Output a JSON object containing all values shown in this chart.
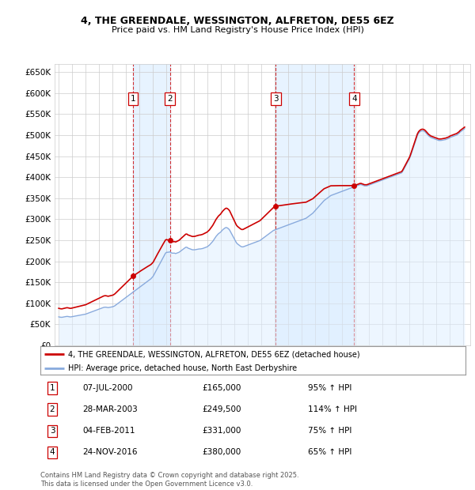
{
  "title_line1": "4, THE GREENDALE, WESSINGTON, ALFRETON, DE55 6EZ",
  "title_line2": "Price paid vs. HM Land Registry's House Price Index (HPI)",
  "background_color": "#ffffff",
  "grid_color": "#cccccc",
  "sale_color": "#cc0000",
  "hpi_color": "#88aadd",
  "hpi_fill_color": "#ddeeff",
  "vband_color": "#ddeeff",
  "ylim": [
    0,
    670000
  ],
  "yticks": [
    0,
    50000,
    100000,
    150000,
    200000,
    250000,
    300000,
    350000,
    400000,
    450000,
    500000,
    550000,
    600000,
    650000
  ],
  "ytick_labels": [
    "£0",
    "£50K",
    "£100K",
    "£150K",
    "£200K",
    "£250K",
    "£300K",
    "£350K",
    "£400K",
    "£450K",
    "£500K",
    "£550K",
    "£600K",
    "£650K"
  ],
  "xlim_start": 1994.7,
  "xlim_end": 2025.5,
  "xticks": [
    1995,
    1996,
    1997,
    1998,
    1999,
    2000,
    2001,
    2002,
    2003,
    2004,
    2005,
    2006,
    2007,
    2008,
    2009,
    2010,
    2011,
    2012,
    2013,
    2014,
    2015,
    2016,
    2017,
    2018,
    2019,
    2020,
    2021,
    2022,
    2023,
    2024,
    2025
  ],
  "legend_sale_label": "4, THE GREENDALE, WESSINGTON, ALFRETON, DE55 6EZ (detached house)",
  "legend_hpi_label": "HPI: Average price, detached house, North East Derbyshire",
  "sale_events": [
    {
      "label": "1",
      "date_year": 2000.52,
      "price": 165000,
      "pct": "95%",
      "date_str": "07-JUL-2000"
    },
    {
      "label": "2",
      "date_year": 2003.24,
      "price": 249500,
      "pct": "114%",
      "date_str": "28-MAR-2003"
    },
    {
      "label": "3",
      "date_year": 2011.09,
      "price": 331000,
      "pct": "75%",
      "date_str": "04-FEB-2011"
    },
    {
      "label": "4",
      "date_year": 2016.9,
      "price": 380000,
      "pct": "65%",
      "date_str": "24-NOV-2016"
    }
  ],
  "footnote": "Contains HM Land Registry data © Crown copyright and database right 2025.\nThis data is licensed under the Open Government Licence v3.0.",
  "hpi_data_x": [
    1995.0,
    1995.083,
    1995.167,
    1995.25,
    1995.333,
    1995.417,
    1995.5,
    1995.583,
    1995.667,
    1995.75,
    1995.833,
    1995.917,
    1996.0,
    1996.083,
    1996.167,
    1996.25,
    1996.333,
    1996.417,
    1996.5,
    1996.583,
    1996.667,
    1996.75,
    1996.833,
    1996.917,
    1997.0,
    1997.083,
    1997.167,
    1997.25,
    1997.333,
    1997.417,
    1997.5,
    1997.583,
    1997.667,
    1997.75,
    1997.833,
    1997.917,
    1998.0,
    1998.083,
    1998.167,
    1998.25,
    1998.333,
    1998.417,
    1998.5,
    1998.583,
    1998.667,
    1998.75,
    1998.833,
    1998.917,
    1999.0,
    1999.083,
    1999.167,
    1999.25,
    1999.333,
    1999.417,
    1999.5,
    1999.583,
    1999.667,
    1999.75,
    1999.833,
    1999.917,
    2000.0,
    2000.083,
    2000.167,
    2000.25,
    2000.333,
    2000.417,
    2000.5,
    2000.583,
    2000.667,
    2000.75,
    2000.833,
    2000.917,
    2001.0,
    2001.083,
    2001.167,
    2001.25,
    2001.333,
    2001.417,
    2001.5,
    2001.583,
    2001.667,
    2001.75,
    2001.833,
    2001.917,
    2002.0,
    2002.083,
    2002.167,
    2002.25,
    2002.333,
    2002.417,
    2002.5,
    2002.583,
    2002.667,
    2002.75,
    2002.833,
    2002.917,
    2003.0,
    2003.083,
    2003.167,
    2003.25,
    2003.333,
    2003.417,
    2003.5,
    2003.583,
    2003.667,
    2003.75,
    2003.833,
    2003.917,
    2004.0,
    2004.083,
    2004.167,
    2004.25,
    2004.333,
    2004.417,
    2004.5,
    2004.583,
    2004.667,
    2004.75,
    2004.833,
    2004.917,
    2005.0,
    2005.083,
    2005.167,
    2005.25,
    2005.333,
    2005.417,
    2005.5,
    2005.583,
    2005.667,
    2005.75,
    2005.833,
    2005.917,
    2006.0,
    2006.083,
    2006.167,
    2006.25,
    2006.333,
    2006.417,
    2006.5,
    2006.583,
    2006.667,
    2006.75,
    2006.833,
    2006.917,
    2007.0,
    2007.083,
    2007.167,
    2007.25,
    2007.333,
    2007.417,
    2007.5,
    2007.583,
    2007.667,
    2007.75,
    2007.833,
    2007.917,
    2008.0,
    2008.083,
    2008.167,
    2008.25,
    2008.333,
    2008.417,
    2008.5,
    2008.583,
    2008.667,
    2008.75,
    2008.833,
    2008.917,
    2009.0,
    2009.083,
    2009.167,
    2009.25,
    2009.333,
    2009.417,
    2009.5,
    2009.583,
    2009.667,
    2009.75,
    2009.833,
    2009.917,
    2010.0,
    2010.083,
    2010.167,
    2010.25,
    2010.333,
    2010.417,
    2010.5,
    2010.583,
    2010.667,
    2010.75,
    2010.833,
    2010.917,
    2011.0,
    2011.083,
    2011.167,
    2011.25,
    2011.333,
    2011.417,
    2011.5,
    2011.583,
    2011.667,
    2011.75,
    2011.833,
    2011.917,
    2012.0,
    2012.083,
    2012.167,
    2012.25,
    2012.333,
    2012.417,
    2012.5,
    2012.583,
    2012.667,
    2012.75,
    2012.833,
    2012.917,
    2013.0,
    2013.083,
    2013.167,
    2013.25,
    2013.333,
    2013.417,
    2013.5,
    2013.583,
    2013.667,
    2013.75,
    2013.833,
    2013.917,
    2014.0,
    2014.083,
    2014.167,
    2014.25,
    2014.333,
    2014.417,
    2014.5,
    2014.583,
    2014.667,
    2014.75,
    2014.833,
    2014.917,
    2015.0,
    2015.083,
    2015.167,
    2015.25,
    2015.333,
    2015.417,
    2015.5,
    2015.583,
    2015.667,
    2015.75,
    2015.833,
    2015.917,
    2016.0,
    2016.083,
    2016.167,
    2016.25,
    2016.333,
    2016.417,
    2016.5,
    2016.583,
    2016.667,
    2016.75,
    2016.833,
    2016.917,
    2017.0,
    2017.083,
    2017.167,
    2017.25,
    2017.333,
    2017.417,
    2017.5,
    2017.583,
    2017.667,
    2017.75,
    2017.833,
    2017.917,
    2018.0,
    2018.083,
    2018.167,
    2018.25,
    2018.333,
    2018.417,
    2018.5,
    2018.583,
    2018.667,
    2018.75,
    2018.833,
    2018.917,
    2019.0,
    2019.083,
    2019.167,
    2019.25,
    2019.333,
    2019.417,
    2019.5,
    2019.583,
    2019.667,
    2019.75,
    2019.833,
    2019.917,
    2020.0,
    2020.083,
    2020.167,
    2020.25,
    2020.333,
    2020.417,
    2020.5,
    2020.583,
    2020.667,
    2020.75,
    2020.833,
    2020.917,
    2021.0,
    2021.083,
    2021.167,
    2021.25,
    2021.333,
    2021.417,
    2021.5,
    2021.583,
    2021.667,
    2021.75,
    2021.833,
    2021.917,
    2022.0,
    2022.083,
    2022.167,
    2022.25,
    2022.333,
    2022.417,
    2022.5,
    2022.583,
    2022.667,
    2022.75,
    2022.833,
    2022.917,
    2023.0,
    2023.083,
    2023.167,
    2023.25,
    2023.333,
    2023.417,
    2023.5,
    2023.583,
    2023.667,
    2023.75,
    2023.833,
    2023.917,
    2024.0,
    2024.083,
    2024.167,
    2024.25,
    2024.333,
    2024.417,
    2024.5,
    2024.583,
    2024.667,
    2024.75,
    2024.833,
    2024.917,
    2025.0,
    2025.083
  ],
  "hpi_data_y": [
    68000,
    67500,
    67000,
    67000,
    67500,
    68000,
    68500,
    69000,
    69000,
    68500,
    68000,
    68000,
    68500,
    69000,
    69500,
    70000,
    70500,
    71000,
    71500,
    72000,
    72500,
    73000,
    73500,
    74000,
    74500,
    75500,
    76500,
    77500,
    78500,
    79500,
    80500,
    81500,
    82500,
    83500,
    84500,
    85500,
    86500,
    87500,
    88500,
    89500,
    90500,
    91000,
    91000,
    90500,
    90000,
    90500,
    91000,
    91500,
    92000,
    93000,
    94500,
    96500,
    98500,
    100500,
    102500,
    104500,
    106500,
    108500,
    110500,
    112500,
    114500,
    116500,
    118500,
    120500,
    122500,
    124500,
    126500,
    128500,
    130500,
    132500,
    134500,
    136500,
    138500,
    140500,
    142500,
    144500,
    146500,
    148500,
    150500,
    152500,
    154500,
    156500,
    158500,
    161500,
    164500,
    169500,
    174500,
    179500,
    184500,
    189500,
    194500,
    199500,
    204500,
    209500,
    214500,
    219500,
    221500,
    221500,
    222000,
    222500,
    220500,
    219500,
    219500,
    219500,
    218500,
    219500,
    220500,
    221500,
    223500,
    225500,
    227500,
    229500,
    231500,
    233500,
    233500,
    231500,
    230500,
    229500,
    228500,
    227500,
    227500,
    227500,
    228000,
    228500,
    229000,
    229500,
    229500,
    230000,
    230500,
    231500,
    232500,
    233500,
    234500,
    236500,
    238500,
    241500,
    244500,
    247500,
    251500,
    255500,
    259500,
    262500,
    265500,
    267500,
    269500,
    272500,
    275500,
    277500,
    279500,
    280500,
    279500,
    277500,
    274500,
    269500,
    264500,
    259500,
    254500,
    249500,
    244500,
    241500,
    239500,
    237500,
    235500,
    234500,
    234500,
    235500,
    236500,
    237500,
    238500,
    239500,
    240500,
    241500,
    242500,
    243500,
    244500,
    245500,
    246500,
    247500,
    248500,
    249500,
    251500,
    253500,
    255500,
    257500,
    259500,
    261500,
    263500,
    265500,
    267500,
    269500,
    271500,
    273500,
    274500,
    275500,
    276500,
    277500,
    278500,
    279500,
    280500,
    281500,
    282500,
    283500,
    284500,
    285500,
    286500,
    287500,
    288500,
    289500,
    290500,
    291500,
    292500,
    293500,
    294500,
    295500,
    296500,
    297500,
    298500,
    299500,
    300500,
    301500,
    302500,
    304500,
    306500,
    308500,
    310500,
    312500,
    314500,
    317500,
    320500,
    323500,
    326500,
    329500,
    332500,
    335500,
    338500,
    341500,
    344500,
    346500,
    348500,
    350500,
    352500,
    354500,
    356500,
    357500,
    358500,
    359500,
    360500,
    361500,
    362500,
    363500,
    364500,
    365500,
    366500,
    367500,
    368500,
    369500,
    370500,
    371500,
    372500,
    373500,
    374500,
    375500,
    376500,
    377500,
    378500,
    379500,
    380500,
    381500,
    382500,
    382500,
    381500,
    380500,
    379500,
    379500,
    379500,
    380500,
    381500,
    382500,
    383500,
    384500,
    385500,
    386500,
    387500,
    388500,
    389500,
    390500,
    391500,
    392500,
    393500,
    394500,
    395500,
    396500,
    397500,
    398500,
    399500,
    400500,
    401500,
    402500,
    403500,
    404500,
    405500,
    406500,
    407500,
    408500,
    409500,
    410500,
    414500,
    419500,
    424500,
    429500,
    434500,
    439500,
    444500,
    451500,
    459500,
    467500,
    475500,
    483500,
    491500,
    499500,
    504500,
    507500,
    509500,
    510500,
    510500,
    509500,
    507500,
    504500,
    501500,
    498500,
    496500,
    494500,
    493500,
    492500,
    491500,
    490500,
    489500,
    488500,
    487500,
    487500,
    487500,
    488000,
    488500,
    489000,
    489500,
    490500,
    491500,
    492500,
    494500,
    495500,
    496500,
    497500,
    498500,
    499500,
    500500,
    502500,
    504500,
    507500,
    509500,
    511500,
    513500,
    515500
  ]
}
